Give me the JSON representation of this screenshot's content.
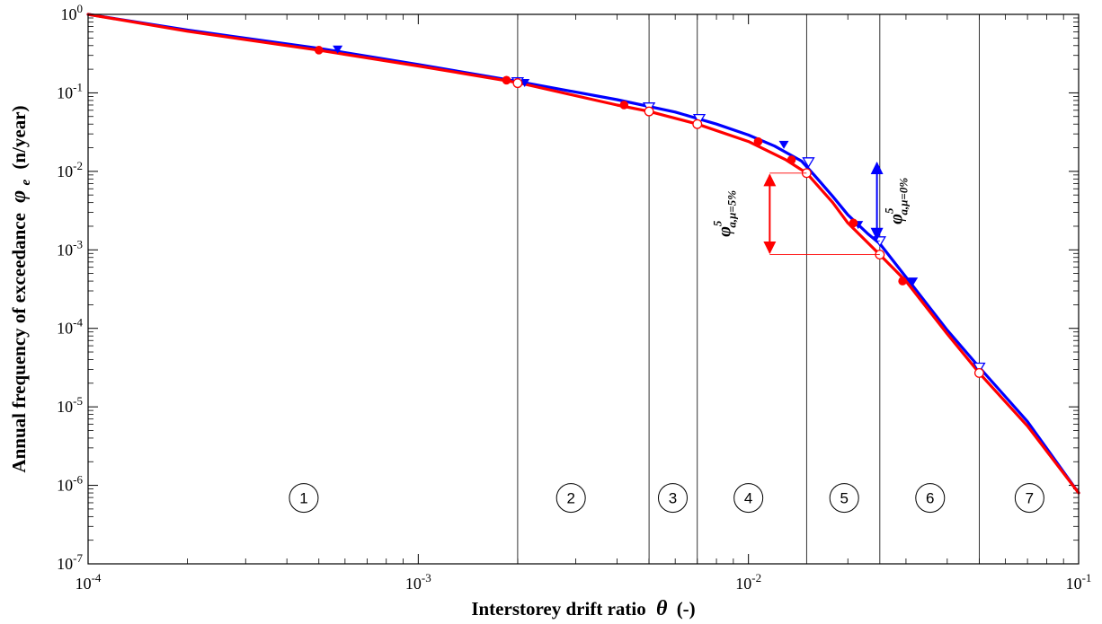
{
  "chart_data": {
    "type": "line",
    "xscale": "log",
    "yscale": "log",
    "xlim": [
      0.0001,
      0.1
    ],
    "ylim": [
      1e-07,
      1
    ],
    "xlabel_prefix": "Interstorey drift ratio",
    "xlabel_symbol": "θ",
    "xlabel_suffix": "(-)",
    "ylabel_prefix": "Annual frequency of exceedance",
    "ylabel_symbol": "φ",
    "ylabel_sub": "e",
    "ylabel_suffix": "(n/year)",
    "x_tick_labels": [
      {
        "value": 0.0001,
        "base": "10",
        "exp": "-4"
      },
      {
        "value": 0.001,
        "base": "10",
        "exp": "-3"
      },
      {
        "value": 0.01,
        "base": "10",
        "exp": "-2"
      },
      {
        "value": 0.1,
        "base": "10",
        "exp": "-1"
      }
    ],
    "y_tick_labels": [
      {
        "value": 1,
        "base": "10",
        "exp": "0"
      },
      {
        "value": 0.1,
        "base": "10",
        "exp": "-1"
      },
      {
        "value": 0.01,
        "base": "10",
        "exp": "-2"
      },
      {
        "value": 0.001,
        "base": "10",
        "exp": "-3"
      },
      {
        "value": 0.0001,
        "base": "10",
        "exp": "-4"
      },
      {
        "value": 1e-05,
        "base": "10",
        "exp": "-5"
      },
      {
        "value": 1e-06,
        "base": "10",
        "exp": "-6"
      },
      {
        "value": 1e-07,
        "base": "10",
        "exp": "-7"
      }
    ],
    "grid": false,
    "series": [
      {
        "color": "#0000ff",
        "x": [
          0.0001,
          0.0002,
          0.0005,
          0.001,
          0.002,
          0.004,
          0.006,
          0.008,
          0.01,
          0.012,
          0.0145,
          0.016,
          0.018,
          0.02,
          0.023,
          0.025,
          0.03,
          0.04,
          0.05,
          0.07,
          0.1
        ],
        "y": [
          1,
          0.63,
          0.37,
          0.23,
          0.14,
          0.082,
          0.057,
          0.04,
          0.029,
          0.021,
          0.0135,
          0.0085,
          0.0048,
          0.0028,
          0.0016,
          0.0012,
          0.00045,
          9.5e-05,
          3.2e-05,
          6.5e-06,
          8e-07
        ],
        "filled_markers": [
          {
            "x": 0.00057,
            "y": 0.36
          },
          {
            "x": 0.0021,
            "y": 0.135
          },
          {
            "x": 0.0128,
            "y": 0.022
          },
          {
            "x": 0.0215,
            "y": 0.0021
          },
          {
            "x": 0.0315,
            "y": 0.0004
          }
        ],
        "open_markers": [
          {
            "x": 0.002,
            "y": 0.138
          },
          {
            "x": 0.005,
            "y": 0.066
          },
          {
            "x": 0.0071,
            "y": 0.047
          },
          {
            "x": 0.0152,
            "y": 0.0132
          },
          {
            "x": 0.025,
            "y": 0.0013
          },
          {
            "x": 0.05,
            "y": 3.2e-05
          }
        ]
      },
      {
        "color": "#ff0000",
        "x": [
          0.0001,
          0.0002,
          0.0005,
          0.001,
          0.002,
          0.004,
          0.005,
          0.007,
          0.01,
          0.013,
          0.015,
          0.018,
          0.02,
          0.025,
          0.03,
          0.04,
          0.05,
          0.07,
          0.1
        ],
        "y": [
          1,
          0.61,
          0.35,
          0.22,
          0.135,
          0.07,
          0.058,
          0.04,
          0.024,
          0.014,
          0.0095,
          0.004,
          0.0022,
          0.00087,
          0.0004,
          8.5e-05,
          2.7e-05,
          5.7e-06,
          8e-07
        ],
        "filled_markers": [
          {
            "x": 0.0005,
            "y": 0.35
          },
          {
            "x": 0.00185,
            "y": 0.145
          },
          {
            "x": 0.0042,
            "y": 0.07
          },
          {
            "x": 0.0107,
            "y": 0.024
          },
          {
            "x": 0.0135,
            "y": 0.014
          },
          {
            "x": 0.0208,
            "y": 0.0022
          },
          {
            "x": 0.0293,
            "y": 0.0004
          }
        ],
        "open_markers": [
          {
            "x": 0.002,
            "y": 0.133
          },
          {
            "x": 0.005,
            "y": 0.058
          },
          {
            "x": 0.007,
            "y": 0.04
          },
          {
            "x": 0.015,
            "y": 0.0095
          },
          {
            "x": 0.025,
            "y": 0.00087
          },
          {
            "x": 0.05,
            "y": 2.7e-05
          }
        ]
      }
    ],
    "vertical_lines": [
      0.002,
      0.005,
      0.007,
      0.015,
      0.025,
      0.05
    ],
    "zones": [
      {
        "label": "1",
        "x": 0.00045
      },
      {
        "label": "2",
        "x": 0.0029
      },
      {
        "label": "3",
        "x": 0.0059
      },
      {
        "label": "4",
        "x": 0.01
      },
      {
        "label": "5",
        "x": 0.0195
      },
      {
        "label": "6",
        "x": 0.0355
      },
      {
        "label": "7",
        "x": 0.071
      }
    ],
    "zone_label_y": 1e-06,
    "annotations": [
      {
        "color": "#ff0000",
        "arrow_x": 0.0116,
        "y_top": 0.0095,
        "y_bottom": 0.00087,
        "line_x_end_top": 0.015,
        "line_x_end_bottom": 0.025,
        "text_phi": "φ",
        "text_sup": "5",
        "text_sub": "a,μ=5%",
        "text_x": 0.0088,
        "text_y": 0.0029
      },
      {
        "color": "#0000ff",
        "arrow_x": 0.0245,
        "y_top": 0.0135,
        "y_bottom": 0.0013,
        "line_x_end_top": 0.0152,
        "line_x_end_bottom": 0.025,
        "text_phi": "φ",
        "text_sup": "5",
        "text_sub": "a,μ=0%",
        "text_x": 0.0292,
        "text_y": 0.0042
      }
    ]
  }
}
